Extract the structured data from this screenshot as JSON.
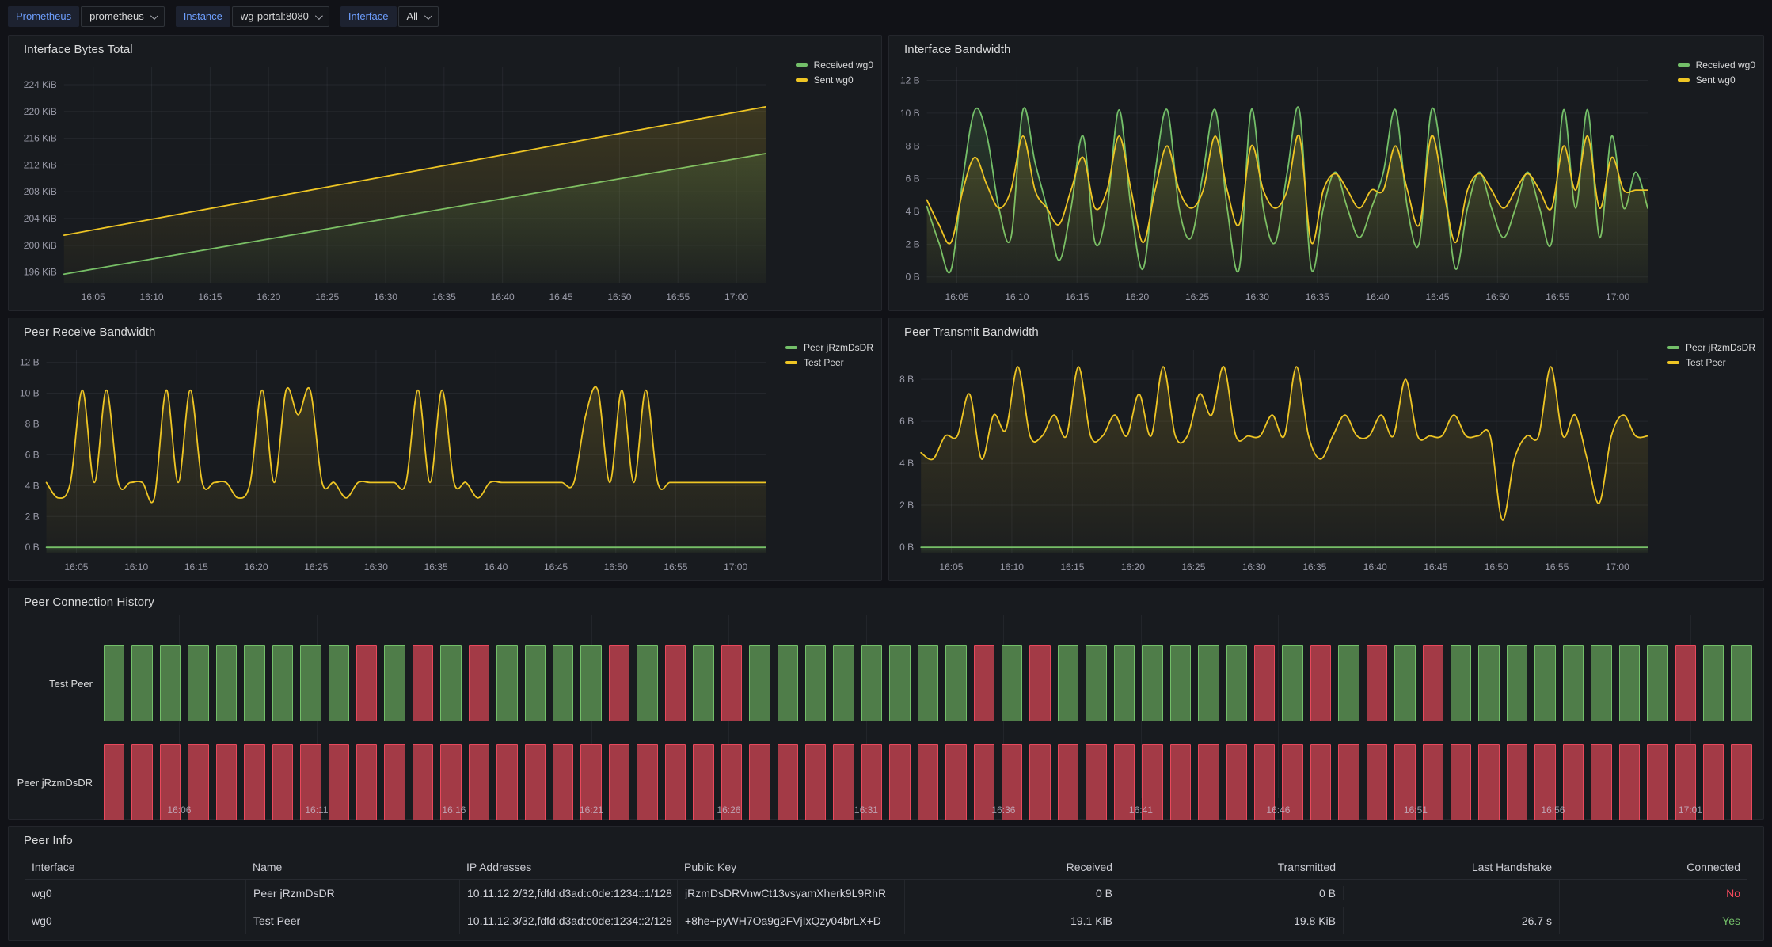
{
  "toolbar": {
    "variables": [
      {
        "label": "Prometheus",
        "value": "prometheus"
      },
      {
        "label": "Instance",
        "value": "wg-portal:8080"
      },
      {
        "label": "Interface",
        "value": "All"
      }
    ]
  },
  "colors": {
    "green": "#73bf69",
    "yellow": "#eec524",
    "red": "#f2495c",
    "hist_green_fill": "#4f7d49",
    "hist_green_border": "#73bf69",
    "hist_red_fill": "#a33a46",
    "hist_red_border": "#e8495c",
    "accent_blue": "#6e9fff"
  },
  "chart_data": [
    {
      "type": "line",
      "title": "Interface Bytes Total",
      "x_ticks": [
        "16:05",
        "16:10",
        "16:15",
        "16:20",
        "16:25",
        "16:30",
        "16:35",
        "16:40",
        "16:45",
        "16:50",
        "16:55",
        "17:00"
      ],
      "y_ticks": [
        196,
        200,
        204,
        208,
        212,
        216,
        220,
        224
      ],
      "y_tick_labels": [
        "196 KiB",
        "200 KiB",
        "204 KiB",
        "208 KiB",
        "212 KiB",
        "216 KiB",
        "220 KiB",
        "224 KiB"
      ],
      "ylim": [
        194.3,
        226.6
      ],
      "ylabel": "KiB",
      "grid": true,
      "legend_position": "right",
      "smooth": false,
      "series": [
        {
          "name": "Received wg0",
          "color": "green",
          "values": [
            195.7,
            197.2,
            198.7,
            200.2,
            201.7,
            203.2,
            204.7,
            206.2,
            207.7,
            209.2,
            210.7,
            212.2,
            213.7
          ]
        },
        {
          "name": "Sent wg0",
          "color": "yellow",
          "values": [
            201.5,
            203.1,
            204.7,
            206.3,
            207.9,
            209.5,
            211.1,
            212.7,
            214.3,
            215.9,
            217.5,
            219.1,
            220.7
          ]
        }
      ]
    },
    {
      "type": "line",
      "title": "Interface Bandwidth",
      "x_ticks": [
        "16:05",
        "16:10",
        "16:15",
        "16:20",
        "16:25",
        "16:30",
        "16:35",
        "16:40",
        "16:45",
        "16:50",
        "16:55",
        "17:00"
      ],
      "y_ticks": [
        0,
        2,
        4,
        6,
        8,
        10,
        12
      ],
      "y_tick_labels": [
        "0 B",
        "2 B",
        "4 B",
        "6 B",
        "8 B",
        "10 B",
        "12 B"
      ],
      "ylim": [
        -0.4,
        12.8
      ],
      "ylabel": "B",
      "grid": true,
      "legend_position": "right",
      "smooth": true,
      "series": [
        {
          "name": "Received wg0",
          "color": "green",
          "values": [
            4.3,
            2.1,
            0.4,
            6.0,
            10.2,
            8.6,
            4.2,
            2.4,
            10.2,
            7.0,
            4.2,
            1.0,
            4.2,
            8.6,
            2.1,
            4.2,
            10.2,
            4.2,
            0.5,
            6.4,
            10.2,
            4.2,
            2.4,
            6.4,
            10.2,
            4.2,
            0.5,
            10.2,
            4.2,
            2.1,
            6.4,
            10.2,
            0.5,
            4.2,
            6.4,
            4.2,
            2.4,
            4.2,
            6.4,
            10.2,
            4.2,
            2.1,
            10.2,
            6.4,
            0.5,
            4.2,
            6.4,
            4.2,
            2.4,
            4.2,
            6.4,
            4.2,
            2.1,
            10.2,
            4.2,
            10.2,
            2.4,
            8.6,
            4.2,
            6.4,
            4.2
          ]
        },
        {
          "name": "Sent wg0",
          "color": "yellow",
          "values": [
            4.7,
            3.2,
            2.1,
            5.3,
            7.3,
            5.6,
            4.2,
            5.3,
            8.6,
            5.3,
            4.2,
            3.2,
            5.3,
            7.3,
            4.2,
            5.3,
            8.6,
            5.3,
            2.1,
            5.3,
            8.0,
            5.3,
            4.2,
            5.3,
            8.6,
            5.3,
            3.2,
            8.0,
            5.3,
            4.2,
            5.3,
            8.6,
            2.1,
            5.3,
            6.3,
            5.3,
            4.2,
            5.3,
            5.3,
            8.0,
            5.3,
            3.2,
            8.6,
            5.3,
            2.1,
            5.3,
            6.3,
            5.3,
            4.2,
            5.3,
            6.3,
            5.3,
            4.2,
            8.0,
            5.3,
            8.6,
            4.2,
            7.3,
            5.3,
            5.3,
            5.3
          ]
        }
      ]
    },
    {
      "type": "line",
      "title": "Peer Receive Bandwidth",
      "x_ticks": [
        "16:05",
        "16:10",
        "16:15",
        "16:20",
        "16:25",
        "16:30",
        "16:35",
        "16:40",
        "16:45",
        "16:50",
        "16:55",
        "17:00"
      ],
      "y_ticks": [
        0,
        2,
        4,
        6,
        8,
        10,
        12
      ],
      "y_tick_labels": [
        "0 B",
        "2 B",
        "4 B",
        "6 B",
        "8 B",
        "10 B",
        "12 B"
      ],
      "ylim": [
        -0.4,
        12.8
      ],
      "ylabel": "B",
      "grid": true,
      "legend_position": "right",
      "smooth": true,
      "series": [
        {
          "name": "Peer jRzmDsDR",
          "color": "green",
          "values": [
            0,
            0
          ]
        },
        {
          "name": "Test Peer",
          "color": "yellow",
          "values": [
            4.2,
            3.2,
            4.2,
            10.2,
            4.2,
            10.2,
            4.2,
            4.2,
            4.2,
            3.2,
            10.2,
            4.2,
            10.2,
            4.2,
            4.2,
            4.2,
            3.2,
            4.2,
            10.2,
            4.2,
            10.2,
            8.6,
            10.2,
            4.2,
            4.2,
            3.2,
            4.2,
            4.2,
            4.2,
            4.2,
            4.2,
            10.2,
            4.2,
            10.2,
            4.2,
            4.2,
            3.2,
            4.2,
            4.2,
            4.2,
            4.2,
            4.2,
            4.2,
            4.2,
            4.2,
            8.6,
            10.2,
            4.2,
            10.2,
            4.2,
            10.2,
            4.2,
            4.2,
            4.2,
            4.2,
            4.2,
            4.2,
            4.2,
            4.2,
            4.2,
            4.2
          ]
        }
      ]
    },
    {
      "type": "line",
      "title": "Peer Transmit Bandwidth",
      "x_ticks": [
        "16:05",
        "16:10",
        "16:15",
        "16:20",
        "16:25",
        "16:30",
        "16:35",
        "16:40",
        "16:45",
        "16:50",
        "16:55",
        "17:00"
      ],
      "y_ticks": [
        0,
        2,
        4,
        6,
        8
      ],
      "y_tick_labels": [
        "0 B",
        "2 B",
        "4 B",
        "6 B",
        "8 B"
      ],
      "ylim": [
        -0.3,
        9.4
      ],
      "ylabel": "B",
      "grid": true,
      "legend_position": "right",
      "smooth": true,
      "series": [
        {
          "name": "Peer jRzmDsDR",
          "color": "green",
          "values": [
            0,
            0
          ]
        },
        {
          "name": "Test Peer",
          "color": "yellow",
          "values": [
            4.5,
            4.2,
            5.3,
            5.3,
            7.3,
            4.2,
            6.3,
            5.6,
            8.6,
            5.3,
            5.3,
            6.3,
            5.3,
            8.6,
            5.3,
            5.3,
            6.3,
            5.3,
            7.3,
            5.3,
            8.6,
            5.3,
            5.3,
            7.3,
            6.3,
            8.6,
            5.3,
            5.3,
            5.3,
            6.3,
            5.3,
            8.6,
            5.3,
            4.2,
            5.3,
            6.3,
            5.3,
            5.3,
            6.3,
            5.3,
            8.0,
            5.3,
            5.3,
            5.3,
            6.3,
            5.3,
            5.3,
            5.3,
            1.3,
            4.2,
            5.3,
            5.3,
            8.6,
            5.3,
            6.3,
            4.2,
            2.1,
            5.3,
            6.3,
            5.3,
            5.3
          ]
        }
      ]
    },
    {
      "type": "status-history",
      "title": "Peer Connection History",
      "x_ticks": [
        "16:06",
        "16:11",
        "16:16",
        "16:21",
        "16:26",
        "16:31",
        "16:36",
        "16:41",
        "16:46",
        "16:51",
        "16:56",
        "17:01"
      ],
      "legend": {
        "connected": "green",
        "disconnected": "red"
      },
      "rows": [
        {
          "label": "Test Peer",
          "values": [
            1,
            1,
            1,
            1,
            1,
            1,
            1,
            1,
            1,
            0,
            1,
            0,
            1,
            0,
            1,
            1,
            1,
            1,
            0,
            1,
            0,
            1,
            0,
            1,
            1,
            1,
            1,
            1,
            1,
            1,
            1,
            0,
            1,
            0,
            1,
            1,
            1,
            1,
            1,
            1,
            1,
            0,
            1,
            0,
            1,
            0,
            1,
            0,
            1,
            1,
            1,
            1,
            1,
            1,
            1,
            1,
            0,
            1,
            1
          ]
        },
        {
          "label": "Peer jRzmDsDR",
          "values": [
            0,
            0,
            0,
            0,
            0,
            0,
            0,
            0,
            0,
            0,
            0,
            0,
            0,
            0,
            0,
            0,
            0,
            0,
            0,
            0,
            0,
            0,
            0,
            0,
            0,
            0,
            0,
            0,
            0,
            0,
            0,
            0,
            0,
            0,
            0,
            0,
            0,
            0,
            0,
            0,
            0,
            0,
            0,
            0,
            0,
            0,
            0,
            0,
            0,
            0,
            0,
            0,
            0,
            0,
            0,
            0,
            0,
            0,
            0
          ]
        }
      ]
    }
  ],
  "peer_info": {
    "title": "Peer Info",
    "columns": [
      "Interface",
      "Name",
      "IP Addresses",
      "Public Key",
      "Received",
      "Transmitted",
      "Last Handshake",
      "Connected"
    ],
    "numeric_columns_from": 4,
    "value_colors": {
      "Yes": "c-green",
      "No": "c-red"
    },
    "rows": [
      {
        "cells": [
          "wg0",
          "Peer jRzmDsDR",
          "10.11.12.2/32,fdfd:d3ad:c0de:1234::1/128",
          "jRzmDsDRVnwCt13vsyamXherk9L9RhR",
          "0 B",
          "0 B",
          "",
          "No"
        ]
      },
      {
        "cells": [
          "wg0",
          "Test Peer",
          "10.11.12.3/32,fdfd:d3ad:c0de:1234::2/128",
          "+8he+pyWH7Oa9g2FVjIxQzy04brLX+D",
          "19.1 KiB",
          "19.8 KiB",
          "26.7 s",
          "Yes"
        ]
      }
    ]
  }
}
